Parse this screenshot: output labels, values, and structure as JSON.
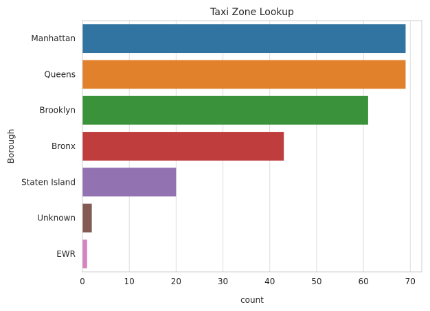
{
  "chart_data": {
    "type": "bar",
    "orientation": "horizontal",
    "title": "Taxi Zone Lookup",
    "xlabel": "count",
    "ylabel": "Borough",
    "categories": [
      "Manhattan",
      "Queens",
      "Brooklyn",
      "Bronx",
      "Staten Island",
      "Unknown",
      "EWR"
    ],
    "values": [
      69,
      69,
      61,
      43,
      20,
      2,
      1
    ],
    "colors": [
      "#3274a1",
      "#e1812c",
      "#3a923a",
      "#c03d3e",
      "#9372b2",
      "#845b53",
      "#d684bd"
    ],
    "xlim": [
      0,
      72.45
    ],
    "xticks": [
      0,
      10,
      20,
      30,
      40,
      50,
      60,
      70
    ],
    "grid": true,
    "legend": "none"
  }
}
